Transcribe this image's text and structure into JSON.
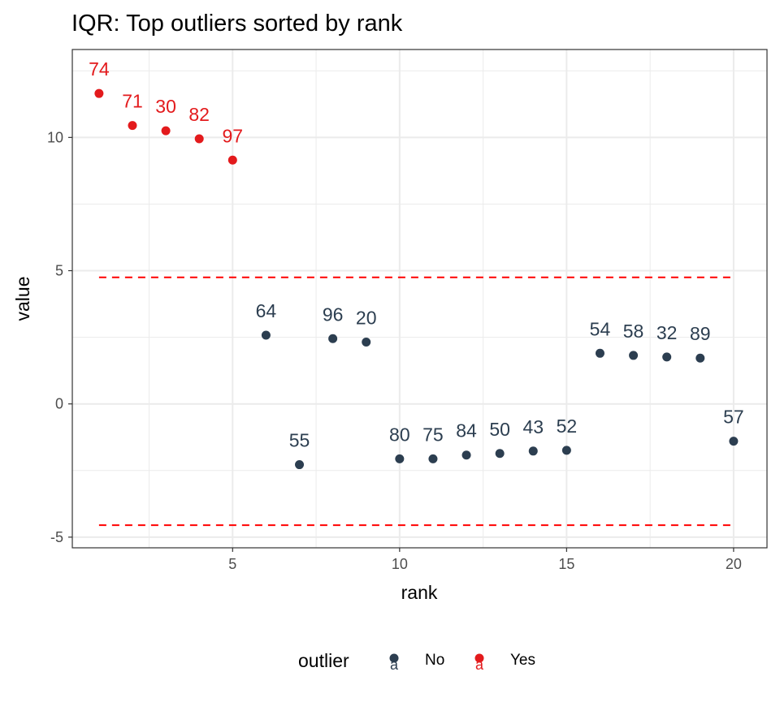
{
  "chart_data": {
    "type": "scatter",
    "title": "IQR: Top outliers sorted by rank",
    "xlabel": "rank",
    "ylabel": "value",
    "xlim": [
      0.2,
      21
    ],
    "ylim": [
      -5.4,
      13.3
    ],
    "x_ticks": [
      5,
      10,
      15,
      20
    ],
    "y_ticks": [
      -5,
      0,
      5,
      10
    ],
    "grid": true,
    "thresholds": [
      {
        "name": "upper",
        "value": 4.75,
        "color": "#ff0000",
        "style": "dashed"
      },
      {
        "name": "lower",
        "value": -4.55,
        "color": "#ff0000",
        "style": "dashed"
      }
    ],
    "legend": {
      "title": "outlier",
      "placement": "bottom",
      "entries": [
        {
          "label": "No",
          "color": "#2c3e50"
        },
        {
          "label": "Yes",
          "color": "#e31a1c"
        }
      ]
    },
    "series": [
      {
        "name": "Yes",
        "color": "#e31a1c",
        "points": [
          {
            "x": 1,
            "y": 11.65,
            "label": "74"
          },
          {
            "x": 2,
            "y": 10.45,
            "label": "71"
          },
          {
            "x": 3,
            "y": 10.25,
            "label": "30"
          },
          {
            "x": 4,
            "y": 9.95,
            "label": "82"
          },
          {
            "x": 5,
            "y": 9.15,
            "label": "97"
          }
        ]
      },
      {
        "name": "No",
        "color": "#2c3e50",
        "points": [
          {
            "x": 6,
            "y": 2.58,
            "label": "64"
          },
          {
            "x": 7,
            "y": -2.28,
            "label": "55"
          },
          {
            "x": 8,
            "y": 2.45,
            "label": "96"
          },
          {
            "x": 9,
            "y": 2.32,
            "label": "20"
          },
          {
            "x": 10,
            "y": -2.06,
            "label": "80"
          },
          {
            "x": 11,
            "y": -2.06,
            "label": "75"
          },
          {
            "x": 12,
            "y": -1.92,
            "label": "84"
          },
          {
            "x": 13,
            "y": -1.86,
            "label": "50"
          },
          {
            "x": 14,
            "y": -1.77,
            "label": "43"
          },
          {
            "x": 15,
            "y": -1.74,
            "label": "52"
          },
          {
            "x": 16,
            "y": 1.9,
            "label": "54"
          },
          {
            "x": 17,
            "y": 1.82,
            "label": "58"
          },
          {
            "x": 18,
            "y": 1.76,
            "label": "32"
          },
          {
            "x": 19,
            "y": 1.72,
            "label": "89"
          },
          {
            "x": 20,
            "y": -1.4,
            "label": "57"
          }
        ]
      }
    ]
  }
}
